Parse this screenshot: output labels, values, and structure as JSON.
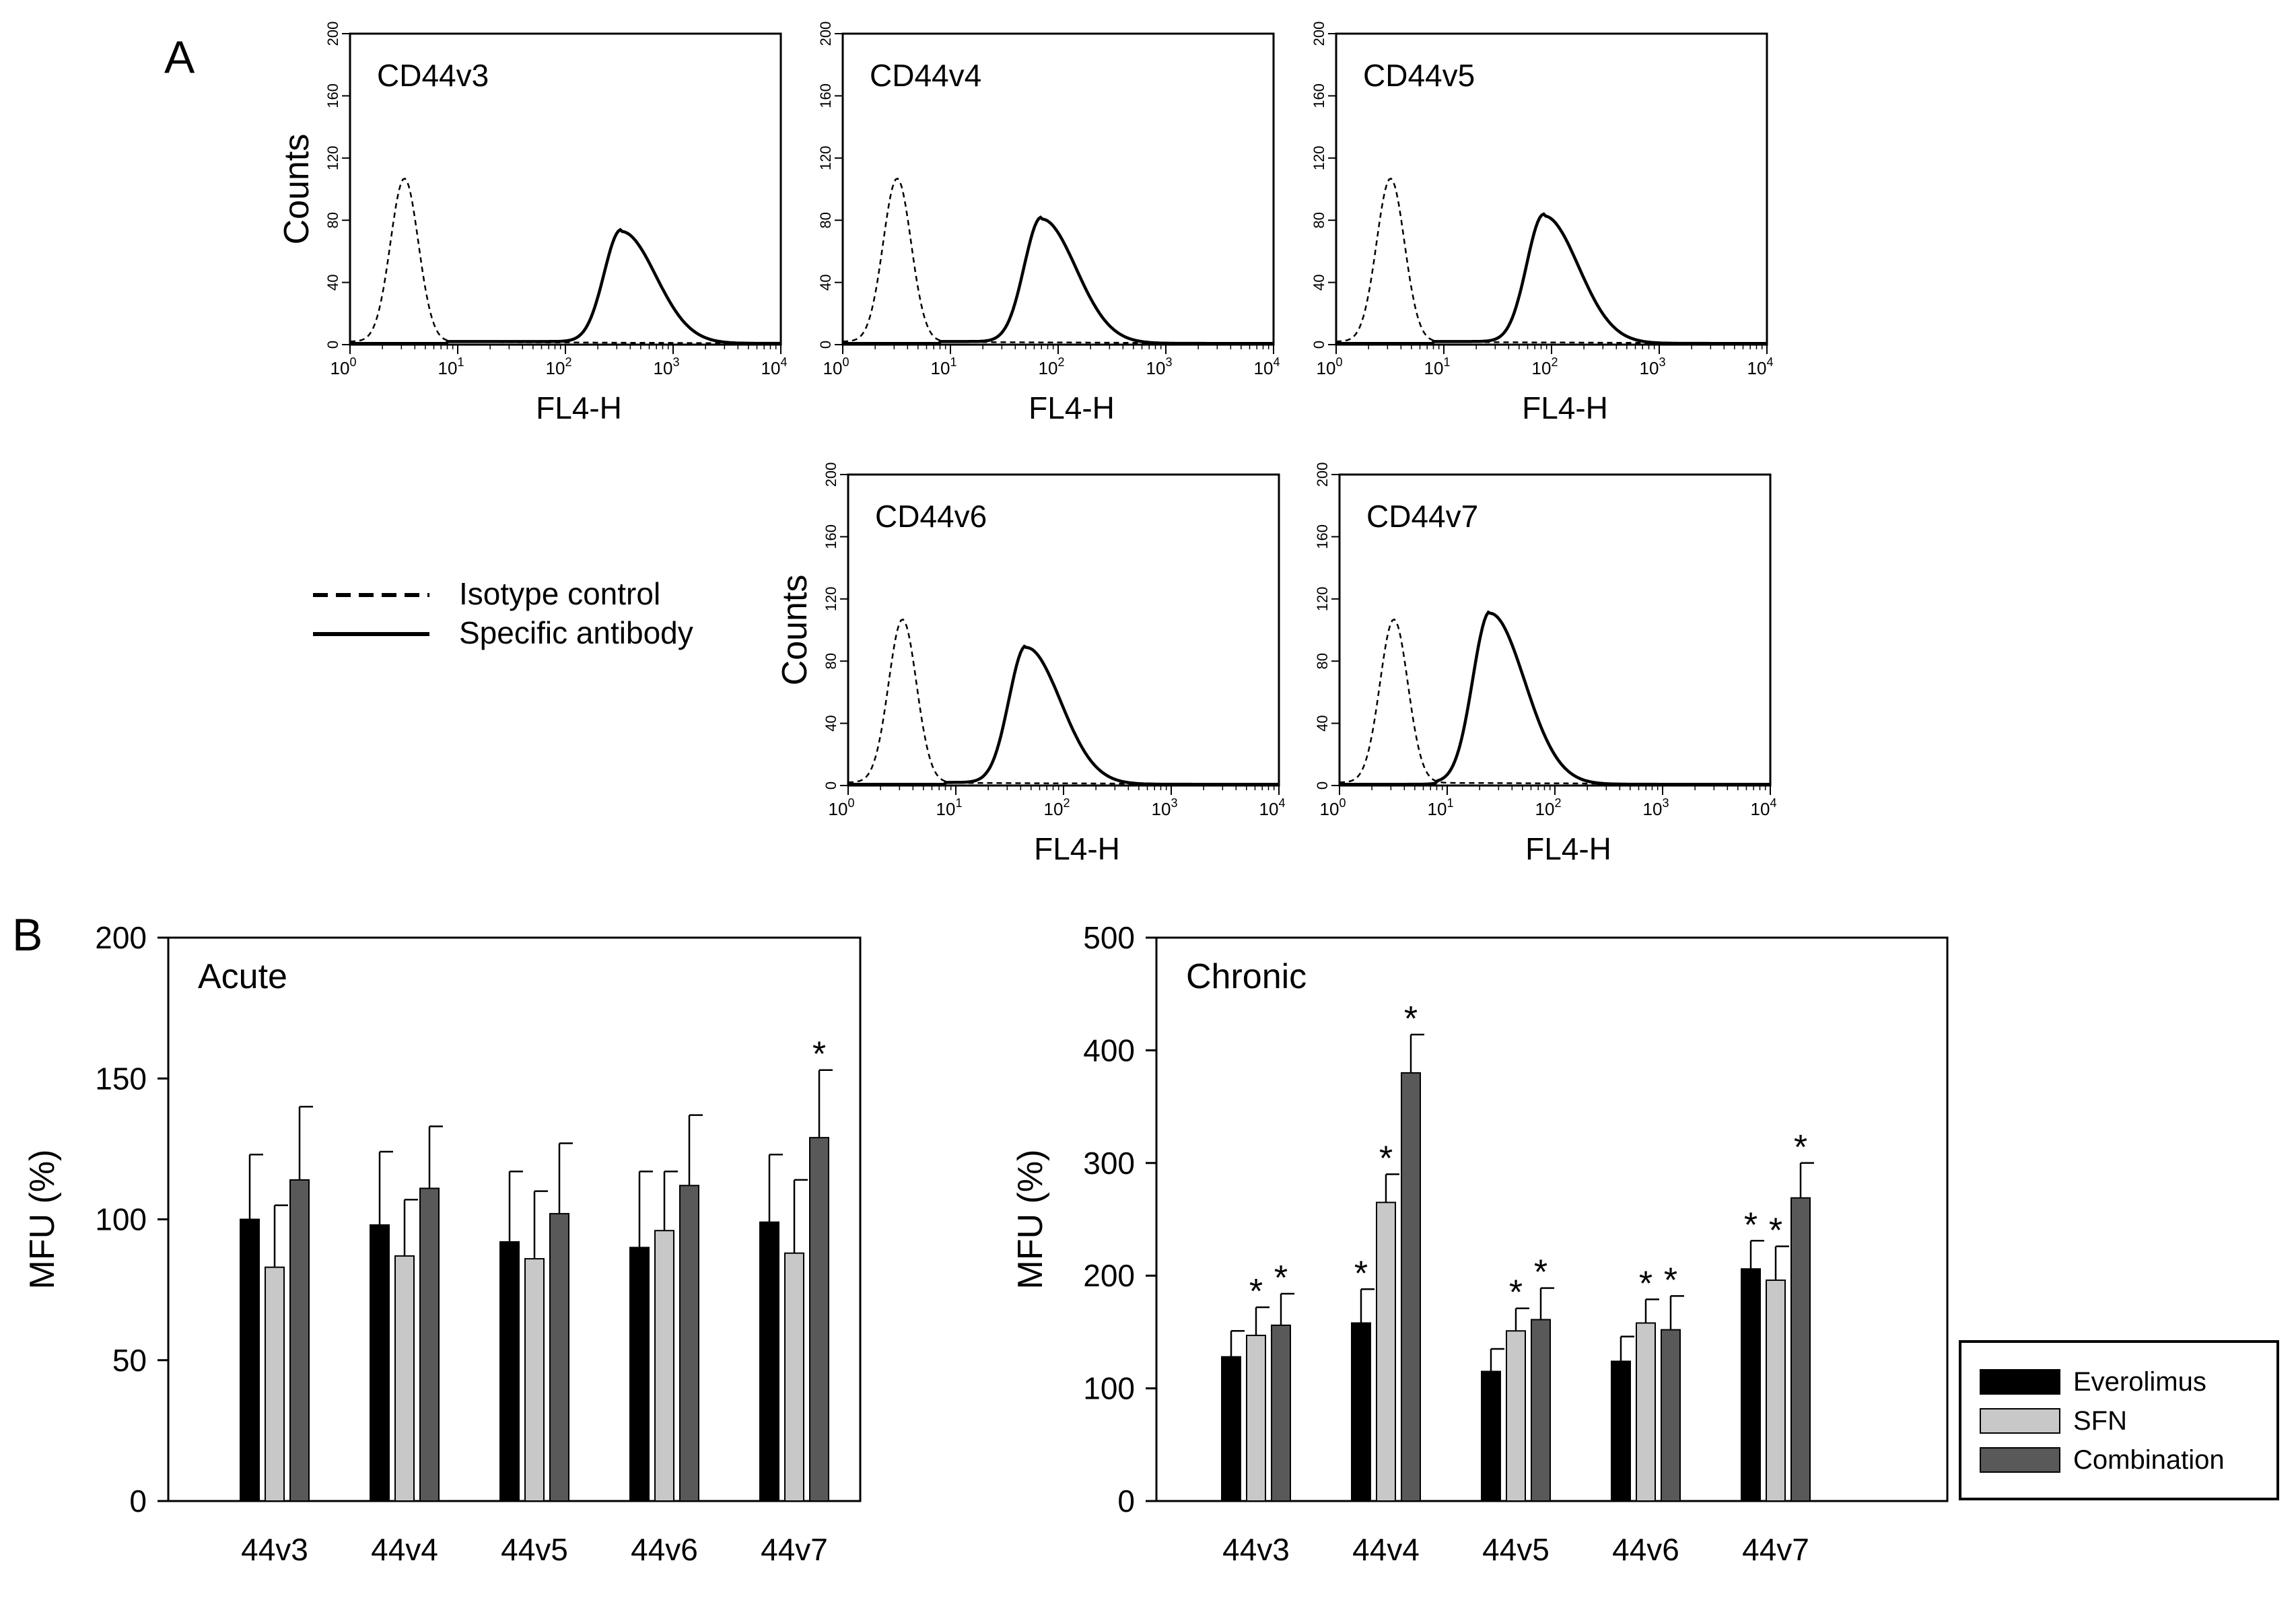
{
  "panel_labels": {
    "a": "A",
    "b": "B"
  },
  "histogram_axis": {
    "ylabel": "Counts",
    "xlabel": "FL4-H",
    "y_ticks": [
      "0",
      "40",
      "80",
      "120",
      "160",
      "200"
    ],
    "x_ticks": [
      {
        "base": "10",
        "exp": "0"
      },
      {
        "base": "10",
        "exp": "1"
      },
      {
        "base": "10",
        "exp": "2"
      },
      {
        "base": "10",
        "exp": "3"
      },
      {
        "base": "10",
        "exp": "4"
      }
    ]
  },
  "legend_a": {
    "isotype": "Isotype control",
    "specific": "Specific antibody"
  },
  "legend_b": {
    "items": [
      "Everolimus",
      "SFN",
      "Combination"
    ]
  },
  "colors": {
    "everolimus": "#000000",
    "sfn": "#c8c8c8",
    "combination": "#595959"
  },
  "chart_data": [
    {
      "type": "line",
      "title": "CD44v3",
      "xlabel": "FL4-H",
      "ylabel": "Counts",
      "xscale": "log",
      "xlim": [
        1,
        10000
      ],
      "ylim": [
        0,
        200
      ],
      "series": [
        {
          "name": "Isotype control",
          "peak_x": 3.2,
          "peak_y": 105
        },
        {
          "name": "Specific antibody",
          "peak_x": 330,
          "peak_y": 72
        }
      ]
    },
    {
      "type": "line",
      "title": "CD44v4",
      "xlabel": "FL4-H",
      "ylabel": "Counts",
      "xscale": "log",
      "xlim": [
        1,
        10000
      ],
      "ylim": [
        0,
        200
      ],
      "series": [
        {
          "name": "Isotype control",
          "peak_x": 3.2,
          "peak_y": 105
        },
        {
          "name": "Specific antibody",
          "peak_x": 70,
          "peak_y": 80
        }
      ]
    },
    {
      "type": "line",
      "title": "CD44v5",
      "xlabel": "FL4-H",
      "ylabel": "Counts",
      "xscale": "log",
      "xlim": [
        1,
        10000
      ],
      "ylim": [
        0,
        200
      ],
      "series": [
        {
          "name": "Isotype control",
          "peak_x": 3.2,
          "peak_y": 105
        },
        {
          "name": "Specific antibody",
          "peak_x": 85,
          "peak_y": 82
        }
      ]
    },
    {
      "type": "line",
      "title": "CD44v6",
      "xlabel": "FL4-H",
      "ylabel": "Counts",
      "xscale": "log",
      "xlim": [
        1,
        10000
      ],
      "ylim": [
        0,
        200
      ],
      "series": [
        {
          "name": "Isotype control",
          "peak_x": 3.2,
          "peak_y": 105
        },
        {
          "name": "Specific antibody",
          "peak_x": 45,
          "peak_y": 88
        }
      ]
    },
    {
      "type": "line",
      "title": "CD44v7",
      "xlabel": "FL4-H",
      "ylabel": "Counts",
      "xscale": "log",
      "xlim": [
        1,
        10000
      ],
      "ylim": [
        0,
        200
      ],
      "series": [
        {
          "name": "Isotype control",
          "peak_x": 3.2,
          "peak_y": 105
        },
        {
          "name": "Specific antibody",
          "peak_x": 25,
          "peak_y": 110
        }
      ]
    },
    {
      "type": "bar",
      "title": "Acute",
      "xlabel": "",
      "ylabel": "MFU (%)",
      "ylim": [
        0,
        200
      ],
      "y_ticks": [
        0,
        50,
        100,
        150,
        200
      ],
      "categories": [
        "44v3",
        "44v4",
        "44v5",
        "44v6",
        "44v7"
      ],
      "series": [
        {
          "name": "Everolimus",
          "values": [
            100,
            98,
            92,
            90,
            99
          ],
          "errors": [
            23,
            26,
            25,
            27,
            24
          ],
          "significant": [
            false,
            false,
            false,
            false,
            false
          ]
        },
        {
          "name": "SFN",
          "values": [
            83,
            87,
            86,
            96,
            88
          ],
          "errors": [
            22,
            20,
            24,
            21,
            26
          ],
          "significant": [
            false,
            false,
            false,
            false,
            false
          ]
        },
        {
          "name": "Combination",
          "values": [
            114,
            111,
            102,
            112,
            129
          ],
          "errors": [
            26,
            22,
            25,
            25,
            24
          ],
          "significant": [
            false,
            false,
            false,
            false,
            true
          ]
        }
      ]
    },
    {
      "type": "bar",
      "title": "Chronic",
      "xlabel": "",
      "ylabel": "MFU (%)",
      "ylim": [
        0,
        500
      ],
      "y_ticks": [
        0,
        100,
        200,
        300,
        400,
        500
      ],
      "categories": [
        "44v3",
        "44v4",
        "44v5",
        "44v6",
        "44v7"
      ],
      "series": [
        {
          "name": "Everolimus",
          "values": [
            128,
            158,
            115,
            124,
            206
          ],
          "errors": [
            23,
            30,
            20,
            22,
            25
          ],
          "significant": [
            false,
            true,
            false,
            false,
            true
          ]
        },
        {
          "name": "SFN",
          "values": [
            147,
            265,
            151,
            158,
            196
          ],
          "errors": [
            25,
            25,
            20,
            21,
            30
          ],
          "significant": [
            true,
            true,
            true,
            true,
            true
          ]
        },
        {
          "name": "Combination",
          "values": [
            156,
            380,
            161,
            152,
            269
          ],
          "errors": [
            28,
            34,
            28,
            30,
            31
          ],
          "significant": [
            true,
            true,
            true,
            true,
            true
          ]
        }
      ]
    }
  ]
}
